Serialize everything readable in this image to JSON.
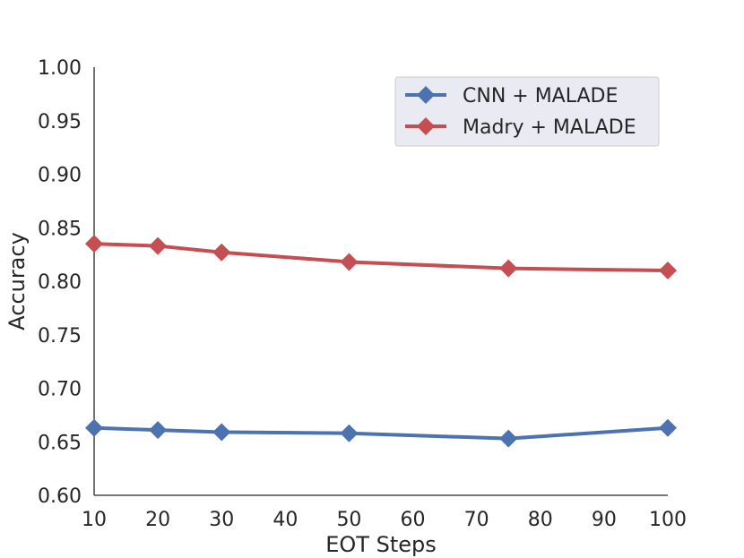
{
  "chart_data": {
    "type": "line",
    "title": "",
    "xlabel": "EOT Steps",
    "ylabel": "Accuracy",
    "xlim": [
      10,
      100
    ],
    "ylim": [
      0.6,
      1.0
    ],
    "x_ticks": [
      "10",
      "20",
      "30",
      "40",
      "50",
      "60",
      "70",
      "80",
      "90",
      "100"
    ],
    "y_ticks": [
      "0.60",
      "0.65",
      "0.70",
      "0.75",
      "0.80",
      "0.85",
      "0.90",
      "0.95",
      "1.00"
    ],
    "grid": false,
    "legend_position": "top-right",
    "x": [
      10,
      20,
      30,
      50,
      75,
      100
    ],
    "series": [
      {
        "name": "CNN + MALADE",
        "color": "#4c72b0",
        "marker": "diamond",
        "values": [
          0.663,
          0.661,
          0.659,
          0.658,
          0.653,
          0.663
        ]
      },
      {
        "name": "Madry + MALADE",
        "color": "#c44e52",
        "marker": "diamond",
        "values": [
          0.835,
          0.833,
          0.827,
          0.818,
          0.812,
          0.81
        ]
      }
    ]
  }
}
